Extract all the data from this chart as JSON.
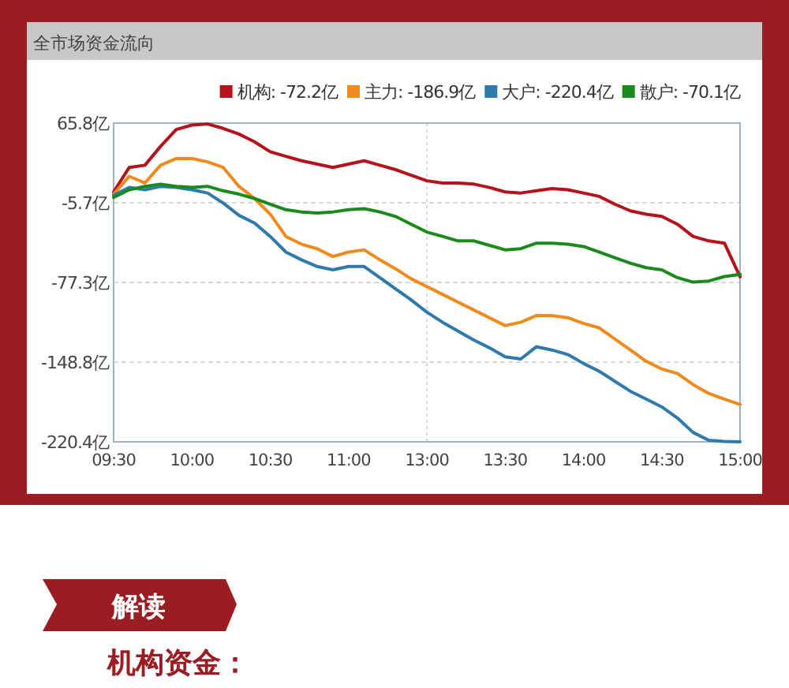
{
  "chart_data": {
    "type": "line",
    "title": "全市场资金流向",
    "categories": [
      "09:30",
      null,
      null,
      null,
      null,
      "10:00",
      null,
      null,
      null,
      null,
      "10:30",
      null,
      null,
      null,
      null,
      "11:00",
      null,
      null,
      null,
      null,
      "13:00",
      null,
      null,
      null,
      null,
      "13:30",
      null,
      null,
      null,
      null,
      "14:00",
      null,
      null,
      null,
      null,
      "14:30",
      null,
      null,
      null,
      null,
      "15:00"
    ],
    "series": [
      {
        "name": "机构: -72.2亿",
        "color": "#b5121b",
        "values": [
          4,
          26,
          28,
          45,
          60,
          64,
          65,
          61,
          56,
          49,
          40,
          36,
          32,
          29,
          26,
          29,
          32,
          28,
          24,
          19,
          14,
          12,
          12,
          11,
          8,
          4,
          3,
          5,
          7,
          6,
          3,
          0,
          -7,
          -13,
          -16,
          -18,
          -25,
          -36,
          -40,
          -42,
          -72.2
        ]
      },
      {
        "name": "主力: -186.9亿",
        "color": "#f08a1c",
        "values": [
          2,
          18,
          12,
          28,
          34,
          34,
          31,
          26,
          9,
          -2,
          -16,
          -36,
          -43,
          -47,
          -54,
          -50,
          -48,
          -57,
          -65,
          -74,
          -81,
          -88,
          -95,
          -102,
          -109,
          -116,
          -113,
          -107,
          -107,
          -109,
          -114,
          -118,
          -128,
          -138,
          -148,
          -155,
          -159,
          -169,
          -177,
          -182,
          -186.9
        ]
      },
      {
        "name": "大户: -220.4亿",
        "color": "#2e7bab",
        "values": [
          1,
          8,
          6,
          9,
          8,
          6,
          3,
          -6,
          -17,
          -24,
          -36,
          -50,
          -57,
          -63,
          -66,
          -63,
          -63,
          -73,
          -83,
          -93,
          -104,
          -113,
          -121,
          -129,
          -136,
          -144,
          -146,
          -135,
          -138,
          -142,
          -150,
          -157,
          -166,
          -175,
          -182,
          -189,
          -199,
          -212,
          -219,
          -220,
          -220.4
        ]
      },
      {
        "name": "散户: -70.1亿",
        "color": "#1a8a1a",
        "values": [
          -1,
          6,
          9,
          11,
          9,
          8,
          9,
          5,
          2,
          -2,
          -7,
          -12,
          -14,
          -15,
          -14,
          -12,
          -11,
          -14,
          -18,
          -25,
          -32,
          -36,
          -40,
          -40,
          -44,
          -48,
          -47,
          -42,
          -42,
          -43,
          -45,
          -50,
          -55,
          -60,
          -64,
          -66,
          -73,
          -77,
          -76,
          -72,
          -70.1
        ]
      }
    ],
    "ylim": [
      -220.4,
      65.8
    ],
    "yticks": [
      {
        "value": 65.8,
        "label": "65.8亿"
      },
      {
        "value": -5.7,
        "label": "-5.7亿"
      },
      {
        "value": -77.3,
        "label": "-77.3亿"
      },
      {
        "value": -148.8,
        "label": "-148.8亿"
      },
      {
        "value": -220.4,
        "label": "-220.4亿"
      }
    ],
    "grid": "y",
    "ref_lines": [
      {
        "axis": "x",
        "value": "13:00"
      }
    ],
    "legend": "top right",
    "annotations": [
      "解读",
      "机构资金："
    ]
  }
}
